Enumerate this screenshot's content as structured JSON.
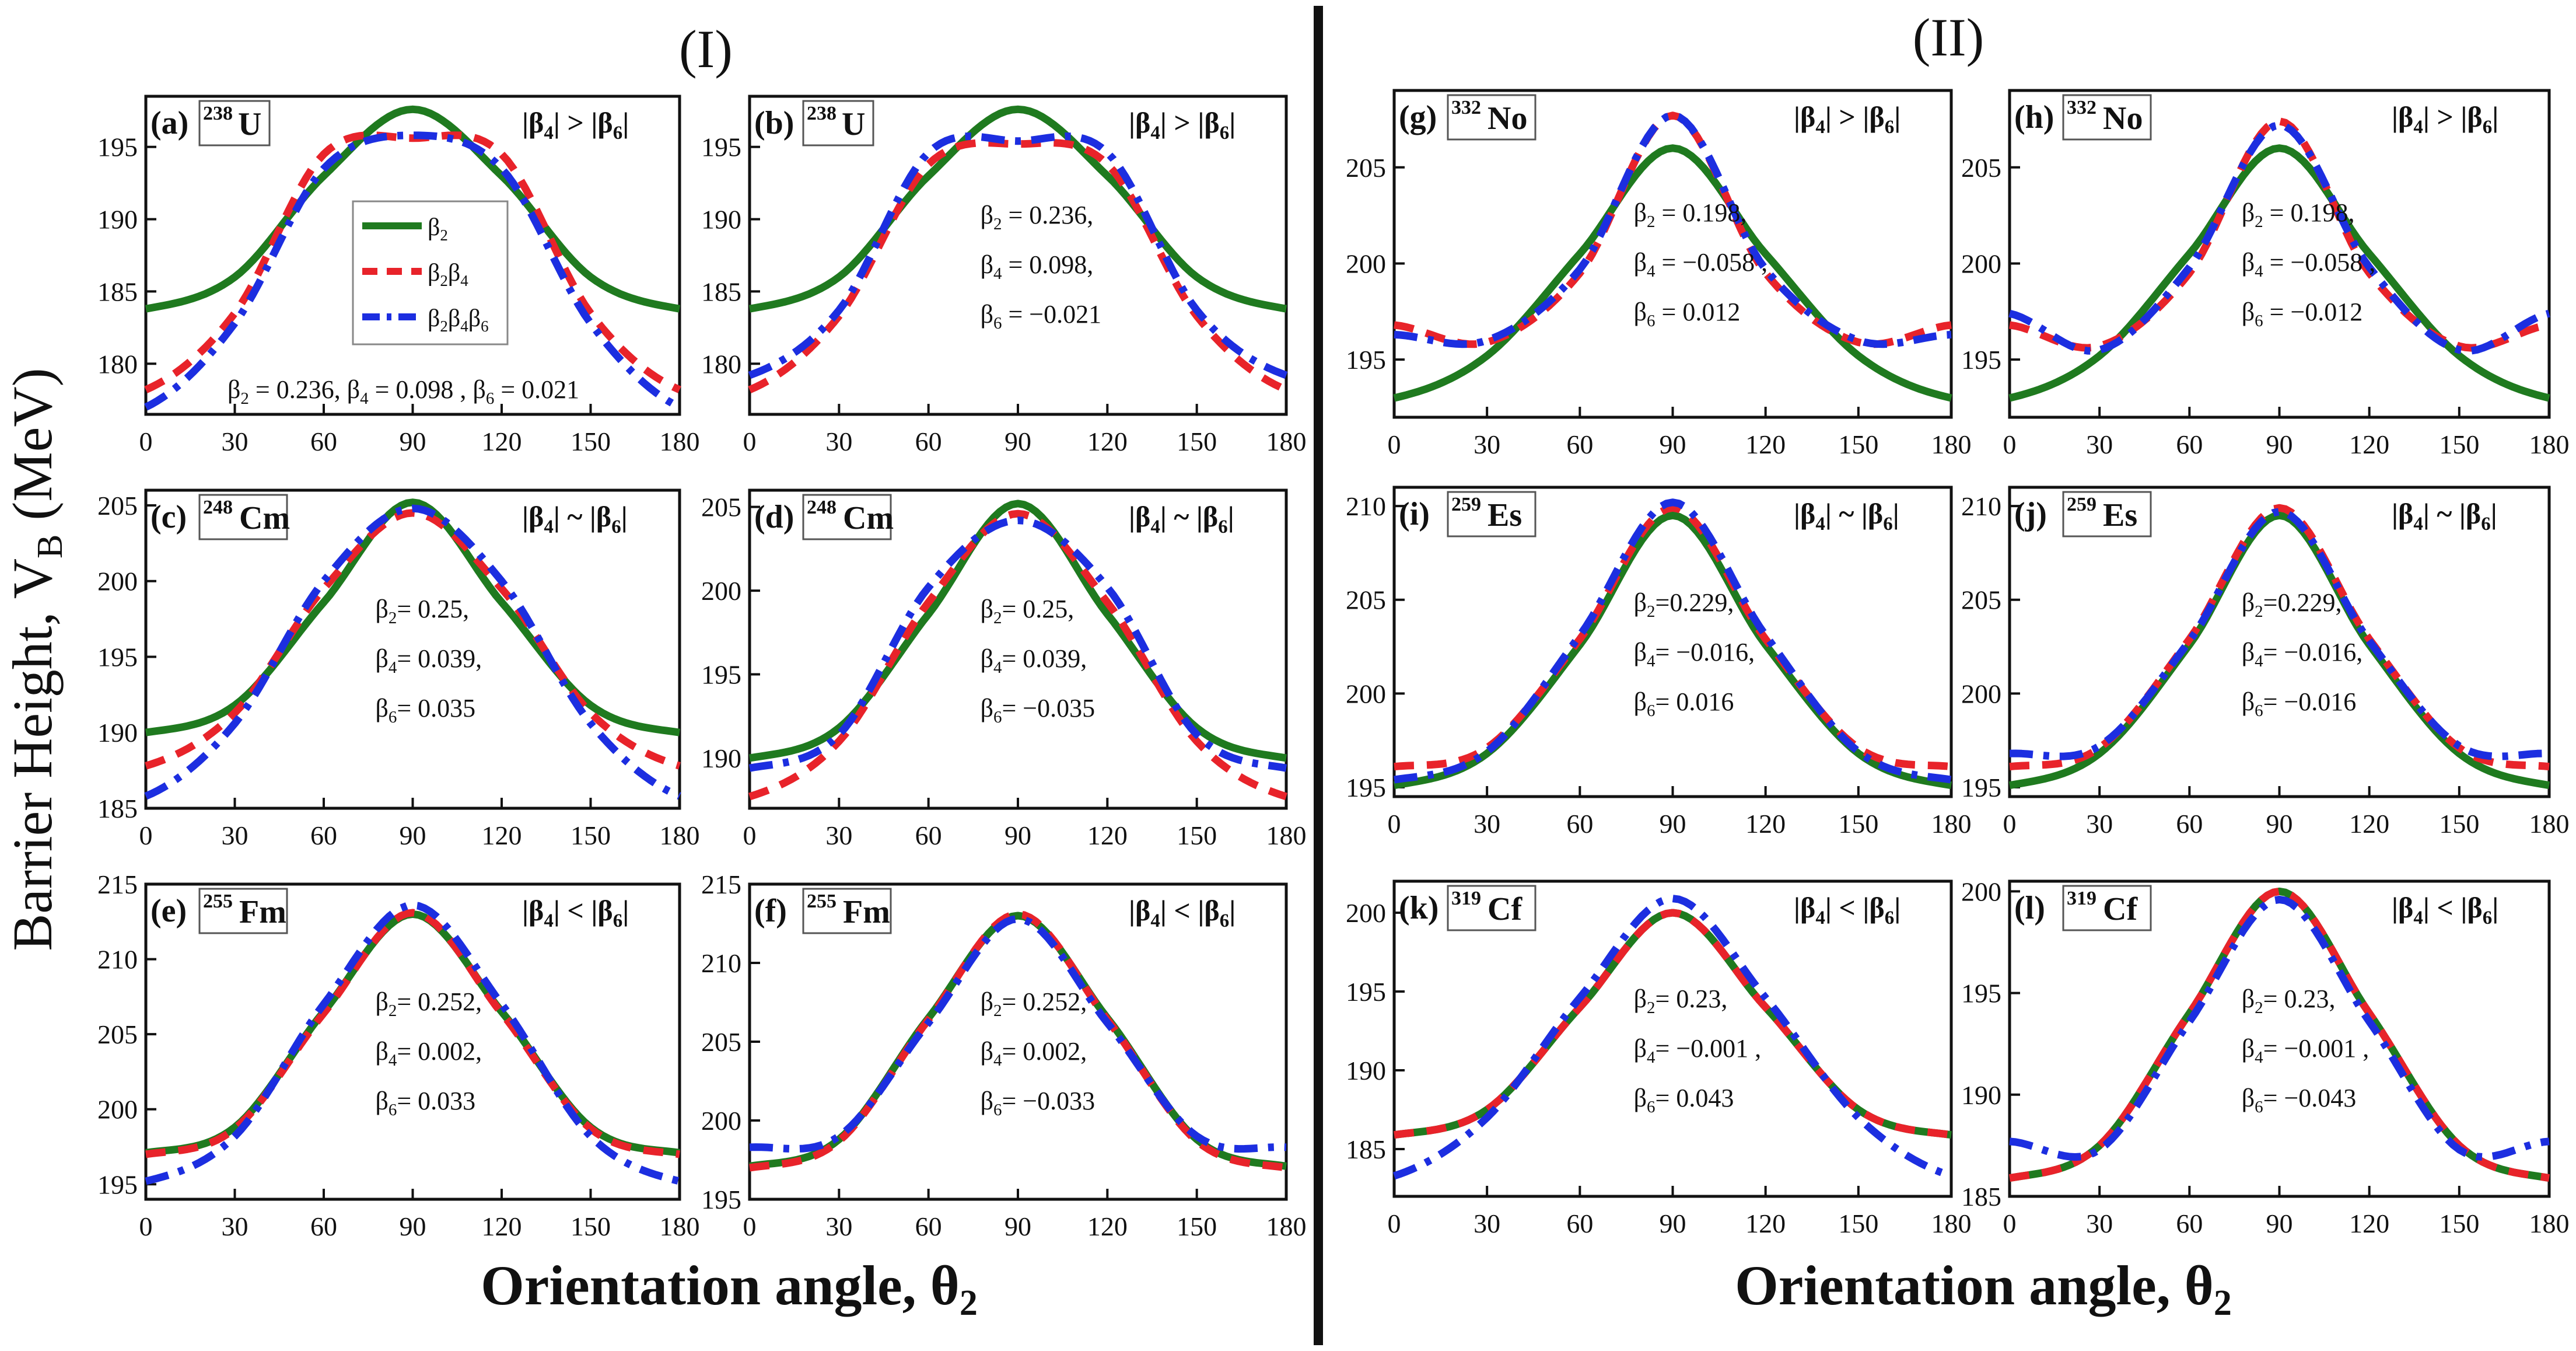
{
  "figure": {
    "group_left": "(I)",
    "group_right": "(II)",
    "ylabel_main": "Barrier Height, V",
    "ylabel_sub": "B",
    "ylabel_unit": " (MeV)",
    "xlabel_main": "Orientation angle, θ",
    "xlabel_sub": "2",
    "legend": [
      "β2",
      "β2β4",
      "β2β4β6"
    ]
  },
  "colors": {
    "beta2": "#1f7a1f",
    "beta2beta4": "#e8232a",
    "beta2beta4beta6": "#1c2ee0"
  },
  "chart_data": [
    {
      "id": "a",
      "type": "line",
      "label": "(a)",
      "mass": "238",
      "element": "U",
      "cond": "|β4| > |β6|",
      "params": [
        "β2 = 0.236,  β4 = 0.098 ,  β6 = 0.021"
      ],
      "ylim": [
        176.5,
        198.5
      ],
      "yticks": [
        180,
        185,
        190,
        195
      ],
      "x": [
        0,
        30,
        60,
        90,
        120,
        150,
        180
      ],
      "xticks": [
        0,
        30,
        60,
        90,
        120,
        150,
        180
      ],
      "series": [
        {
          "name": "β2",
          "values": [
            183.8,
            186.0,
            193.0,
            197.6,
            193.0,
            186.0,
            183.8
          ]
        },
        {
          "name": "β2β4",
          "values": [
            178.2,
            183.5,
            194.5,
            195.6,
            194.5,
            183.5,
            178.2
          ]
        },
        {
          "name": "β2β4β6",
          "values": [
            177.0,
            182.8,
            193.5,
            195.8,
            193.5,
            182.8,
            177.0
          ]
        }
      ]
    },
    {
      "id": "b",
      "type": "line",
      "label": "(b)",
      "mass": "238",
      "element": "U",
      "cond": "|β4| > |β6|",
      "params": [
        "β2 = 0.236,",
        "β4 = 0.098,",
        "β6 = −0.021"
      ],
      "ylim": [
        176.5,
        198.5
      ],
      "yticks": [
        180,
        185,
        190,
        195
      ],
      "x": [
        0,
        30,
        60,
        90,
        120,
        150,
        180
      ],
      "xticks": [
        0,
        30,
        60,
        90,
        120,
        150,
        180
      ],
      "series": [
        {
          "name": "β2",
          "values": [
            183.8,
            186.0,
            193.0,
            197.6,
            193.0,
            186.0,
            183.8
          ]
        },
        {
          "name": "β2β4",
          "values": [
            178.2,
            183.3,
            193.8,
            195.2,
            193.8,
            183.3,
            178.2
          ]
        },
        {
          "name": "β2β4β6",
          "values": [
            179.2,
            183.7,
            194.6,
            195.4,
            194.6,
            183.7,
            179.2
          ]
        }
      ]
    },
    {
      "id": "c",
      "type": "line",
      "label": "(c)",
      "mass": "248",
      "element": "Cm",
      "cond": "|β4| ~ |β6|",
      "params": [
        "β2= 0.25,",
        "β4= 0.039,",
        "β6= 0.035"
      ],
      "ylim": [
        185,
        206
      ],
      "yticks": [
        185,
        190,
        195,
        200,
        205
      ],
      "x": [
        0,
        30,
        60,
        90,
        120,
        150,
        180
      ],
      "xticks": [
        0,
        30,
        60,
        90,
        120,
        150,
        180
      ],
      "series": [
        {
          "name": "β2",
          "values": [
            190.0,
            191.8,
            198.6,
            205.2,
            198.6,
            191.8,
            190.0
          ]
        },
        {
          "name": "β2β4",
          "values": [
            187.8,
            191.3,
            199.5,
            204.5,
            199.5,
            191.3,
            187.8
          ]
        },
        {
          "name": "β2β4β6",
          "values": [
            185.8,
            190.6,
            200.0,
            204.8,
            200.0,
            190.6,
            185.8
          ]
        }
      ]
    },
    {
      "id": "d",
      "type": "line",
      "label": "(d)",
      "mass": "248",
      "element": "Cm",
      "cond": "|β4| ~ |β6|",
      "params": [
        "β2= 0.25,",
        "β4= 0.039,",
        "β6= −0.035"
      ],
      "ylim": [
        187,
        206
      ],
      "yticks": [
        190,
        195,
        200,
        205
      ],
      "x": [
        0,
        30,
        60,
        90,
        120,
        150,
        180
      ],
      "xticks": [
        0,
        30,
        60,
        90,
        120,
        150,
        180
      ],
      "series": [
        {
          "name": "β2",
          "values": [
            190.0,
            191.8,
            198.6,
            205.2,
            198.6,
            191.8,
            190.0
          ]
        },
        {
          "name": "β2β4",
          "values": [
            187.7,
            191.0,
            199.3,
            204.6,
            199.3,
            191.0,
            187.7
          ]
        },
        {
          "name": "β2β4β6",
          "values": [
            189.4,
            191.4,
            200.2,
            204.2,
            200.2,
            191.4,
            189.4
          ]
        }
      ]
    },
    {
      "id": "e",
      "type": "line",
      "label": "(e)",
      "mass": "255",
      "element": "Fm",
      "cond": "|β4| < |β6|",
      "params": [
        "β2= 0.252,",
        "β4= 0.002,",
        "β6= 0.033"
      ],
      "ylim": [
        194,
        215
      ],
      "yticks": [
        195,
        200,
        205,
        210,
        215
      ],
      "x": [
        0,
        30,
        60,
        90,
        120,
        150,
        180
      ],
      "xticks": [
        0,
        30,
        60,
        90,
        120,
        150,
        180
      ],
      "series": [
        {
          "name": "β2",
          "values": [
            197.1,
            198.8,
            206.5,
            213.0,
            206.5,
            198.8,
            197.1
          ]
        },
        {
          "name": "β2β4",
          "values": [
            197.0,
            198.7,
            206.4,
            213.1,
            206.4,
            198.7,
            197.0
          ]
        },
        {
          "name": "β2β4β6",
          "values": [
            195.2,
            198.2,
            207.0,
            213.6,
            207.0,
            198.2,
            195.2
          ]
        }
      ]
    },
    {
      "id": "f",
      "type": "line",
      "label": "(f)",
      "mass": "255",
      "element": "Fm",
      "cond": "|β4| < |β6|",
      "params": [
        "β2= 0.252,",
        "β4= 0.002,",
        "β6= −0.033"
      ],
      "ylim": [
        195,
        215
      ],
      "yticks": [
        195,
        200,
        205,
        210,
        215
      ],
      "x": [
        0,
        30,
        60,
        90,
        120,
        150,
        180
      ],
      "xticks": [
        0,
        30,
        60,
        90,
        120,
        150,
        180
      ],
      "series": [
        {
          "name": "β2",
          "values": [
            197.1,
            198.8,
            206.5,
            213.0,
            206.5,
            198.8,
            197.1
          ]
        },
        {
          "name": "β2β4",
          "values": [
            197.0,
            198.7,
            206.4,
            213.1,
            206.4,
            198.7,
            197.0
          ]
        },
        {
          "name": "β2β4β6",
          "values": [
            198.3,
            199.0,
            206.2,
            212.8,
            206.2,
            199.0,
            198.3
          ]
        }
      ]
    },
    {
      "id": "g",
      "type": "line",
      "label": "(g)",
      "mass": "332",
      "element": "No",
      "cond": "|β4| > |β6|",
      "params": [
        "β2 = 0.198,",
        "β4 = −0.058 ,",
        "β6 = 0.012"
      ],
      "ylim": [
        192,
        209
      ],
      "yticks": [
        195,
        200,
        205
      ],
      "x": [
        0,
        30,
        60,
        90,
        120,
        150,
        180
      ],
      "xticks": [
        0,
        30,
        60,
        90,
        120,
        150,
        180
      ],
      "series": [
        {
          "name": "β2",
          "values": [
            193.0,
            195.2,
            200.5,
            206.0,
            200.5,
            195.2,
            193.0
          ]
        },
        {
          "name": "β2β4",
          "values": [
            196.8,
            195.9,
            199.5,
            207.7,
            199.5,
            195.9,
            196.8
          ]
        },
        {
          "name": "β2β4β6",
          "values": [
            196.3,
            196.0,
            199.7,
            207.7,
            199.7,
            196.0,
            196.3
          ]
        }
      ]
    },
    {
      "id": "h",
      "type": "line",
      "label": "(h)",
      "mass": "332",
      "element": "No",
      "cond": "|β4| > |β6|",
      "params": [
        "β2 = 0.198,",
        "β4 = −0.058 ,",
        "β6 = −0.012"
      ],
      "ylim": [
        192,
        209
      ],
      "yticks": [
        195,
        200,
        205
      ],
      "x": [
        0,
        30,
        60,
        90,
        120,
        150,
        180
      ],
      "xticks": [
        0,
        30,
        60,
        90,
        120,
        150,
        180
      ],
      "series": [
        {
          "name": "β2",
          "values": [
            193.0,
            195.2,
            200.5,
            206.0,
            200.5,
            195.2,
            193.0
          ]
        },
        {
          "name": "β2β4",
          "values": [
            196.8,
            195.7,
            199.5,
            207.4,
            199.5,
            195.7,
            196.8
          ]
        },
        {
          "name": "β2β4β6",
          "values": [
            197.4,
            195.5,
            199.8,
            207.2,
            199.8,
            195.5,
            197.4
          ]
        }
      ]
    },
    {
      "id": "i",
      "type": "line",
      "label": "(i)",
      "mass": "259",
      "element": "Es",
      "cond": "|β4| ~ |β6|",
      "params": [
        "β2=0.229,",
        "β4= −0.016,",
        "β6= 0.016"
      ],
      "ylim": [
        194.5,
        211
      ],
      "yticks": [
        195,
        200,
        205,
        210
      ],
      "x": [
        0,
        30,
        60,
        90,
        120,
        150,
        180
      ],
      "xticks": [
        0,
        30,
        60,
        90,
        120,
        150,
        180
      ],
      "series": [
        {
          "name": "β2",
          "values": [
            195.1,
            196.8,
            202.6,
            209.5,
            202.6,
            196.8,
            195.1
          ]
        },
        {
          "name": "β2β4",
          "values": [
            196.1,
            197.1,
            202.9,
            209.9,
            202.9,
            197.1,
            196.1
          ]
        },
        {
          "name": "β2β4β6",
          "values": [
            195.4,
            196.9,
            203.1,
            210.2,
            203.1,
            196.9,
            195.4
          ]
        }
      ]
    },
    {
      "id": "j",
      "type": "line",
      "label": "(j)",
      "mass": "259",
      "element": "Es",
      "cond": "|β4| ~ |β6|",
      "params": [
        "β2=0.229,",
        "β4= −0.016,",
        "β6= −0.016"
      ],
      "ylim": [
        194.5,
        211
      ],
      "yticks": [
        195,
        200,
        205,
        210
      ],
      "x": [
        0,
        30,
        60,
        90,
        120,
        150,
        180
      ],
      "xticks": [
        0,
        30,
        60,
        90,
        120,
        150,
        180
      ],
      "series": [
        {
          "name": "β2",
          "values": [
            195.1,
            196.8,
            202.6,
            209.5,
            202.6,
            196.8,
            195.1
          ]
        },
        {
          "name": "β2β4",
          "values": [
            196.1,
            197.1,
            202.9,
            209.9,
            202.9,
            197.1,
            196.1
          ]
        },
        {
          "name": "β2β4β6",
          "values": [
            196.8,
            197.2,
            202.8,
            209.7,
            202.8,
            197.2,
            196.8
          ]
        }
      ]
    },
    {
      "id": "k",
      "type": "line",
      "label": "(k)",
      "mass": "319",
      "element": "Cf",
      "cond": "|β4| < |β6|",
      "params": [
        "β2= 0.23,",
        "β4= −0.001 ,",
        "β6= 0.043"
      ],
      "ylim": [
        182,
        202
      ],
      "yticks": [
        185,
        190,
        195,
        200
      ],
      "x": [
        0,
        30,
        60,
        90,
        120,
        150,
        180
      ],
      "xticks": [
        0,
        30,
        60,
        90,
        120,
        150,
        180
      ],
      "series": [
        {
          "name": "β2",
          "values": [
            185.9,
            187.5,
            194.0,
            200.0,
            194.0,
            187.5,
            185.9
          ]
        },
        {
          "name": "β2β4",
          "values": [
            185.9,
            187.5,
            194.0,
            200.0,
            194.0,
            187.5,
            185.9
          ]
        },
        {
          "name": "β2β4β6",
          "values": [
            183.3,
            187.0,
            194.6,
            200.9,
            194.6,
            187.0,
            183.3
          ]
        }
      ]
    },
    {
      "id": "l",
      "type": "line",
      "label": "(l)",
      "mass": "319",
      "element": "Cf",
      "cond": "|β4| < |β6|",
      "params": [
        "β2= 0.23,",
        "β4= −0.001 ,",
        "β6= −0.043"
      ],
      "ylim": [
        185,
        200.5
      ],
      "yticks": [
        185,
        190,
        195,
        200
      ],
      "x": [
        0,
        30,
        60,
        90,
        120,
        150,
        180
      ],
      "xticks": [
        0,
        30,
        60,
        90,
        120,
        150,
        180
      ],
      "series": [
        {
          "name": "β2",
          "values": [
            185.9,
            187.5,
            194.0,
            200.0,
            194.0,
            187.5,
            185.9
          ]
        },
        {
          "name": "β2β4",
          "values": [
            185.9,
            187.5,
            194.0,
            200.0,
            194.0,
            187.5,
            185.9
          ]
        },
        {
          "name": "β2β4β6",
          "values": [
            187.7,
            187.3,
            193.6,
            199.6,
            193.6,
            187.3,
            187.7
          ]
        }
      ]
    }
  ]
}
